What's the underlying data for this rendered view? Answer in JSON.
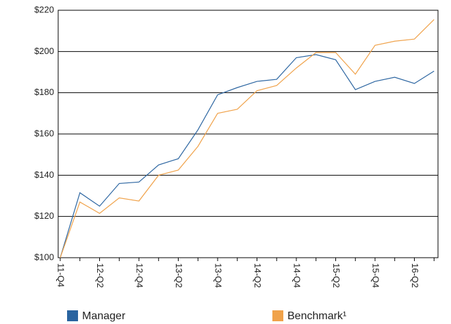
{
  "chart_data": {
    "type": "line",
    "categories": [
      "11-Q4",
      null,
      "12-Q2",
      null,
      "12-Q4",
      null,
      "13-Q2",
      null,
      "13-Q4",
      null,
      "14-Q2",
      null,
      "14-Q4",
      null,
      "15-Q2",
      null,
      "15-Q4",
      null,
      "16-Q2",
      null
    ],
    "series": [
      {
        "name": "Manager",
        "color": "#2a64a0",
        "values": [
          100,
          131.5,
          125,
          136,
          136.7,
          145,
          148,
          162,
          179,
          182.5,
          185.5,
          186.5,
          197,
          198.5,
          196,
          181.5,
          185.5,
          187.5,
          184.5,
          190.5
        ]
      },
      {
        "name": "Benchmark¹",
        "color": "#f0a24a",
        "values": [
          100,
          127,
          121.5,
          129,
          127.5,
          140,
          142.5,
          154,
          170,
          172,
          181,
          183.5,
          192,
          199.5,
          199.5,
          189,
          203,
          205,
          206,
          215.5
        ]
      }
    ],
    "ylim": [
      100,
      220
    ],
    "yticks": [
      {
        "value": 100,
        "label": "$100"
      },
      {
        "value": 120,
        "label": "$120"
      },
      {
        "value": 140,
        "label": "$140"
      },
      {
        "value": 160,
        "label": "$160"
      },
      {
        "value": 180,
        "label": "$180"
      },
      {
        "value": 200,
        "label": "$200"
      },
      {
        "value": 220,
        "label": "$220"
      }
    ],
    "grid": true
  }
}
